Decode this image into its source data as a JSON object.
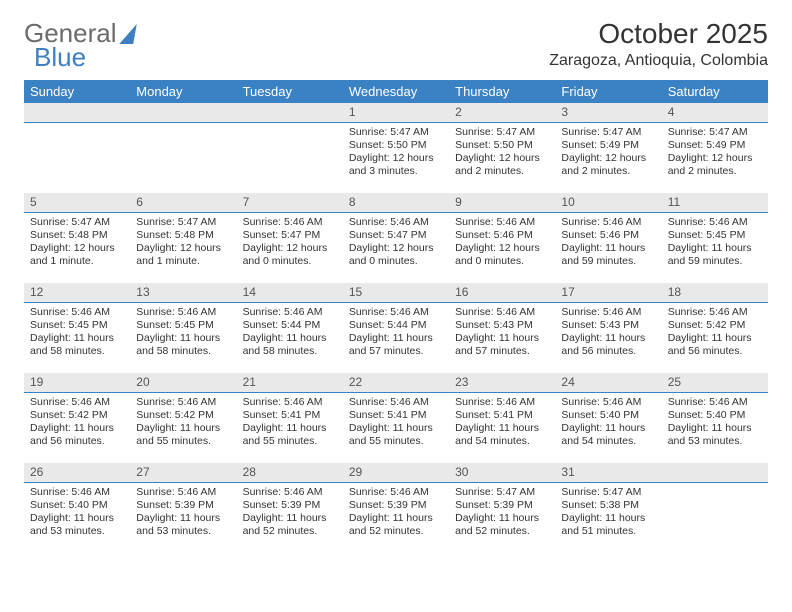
{
  "brand": {
    "part1": "General",
    "part2": "Blue"
  },
  "title": "October 2025",
  "location": "Zaragoza, Antioquia, Colombia",
  "colors": {
    "header_bg": "#3b82c4",
    "header_text": "#ffffff",
    "daynum_bg": "#e9e9e9",
    "daynum_border": "#3b82c4",
    "text": "#333333",
    "logo_gray": "#6b6b6b",
    "logo_blue": "#3f7fbf",
    "page_bg": "#ffffff"
  },
  "weekdays": [
    "Sunday",
    "Monday",
    "Tuesday",
    "Wednesday",
    "Thursday",
    "Friday",
    "Saturday"
  ],
  "weeks": [
    [
      null,
      null,
      null,
      {
        "n": "1",
        "sr": "Sunrise: 5:47 AM",
        "ss": "Sunset: 5:50 PM",
        "dl": "Daylight: 12 hours and 3 minutes."
      },
      {
        "n": "2",
        "sr": "Sunrise: 5:47 AM",
        "ss": "Sunset: 5:50 PM",
        "dl": "Daylight: 12 hours and 2 minutes."
      },
      {
        "n": "3",
        "sr": "Sunrise: 5:47 AM",
        "ss": "Sunset: 5:49 PM",
        "dl": "Daylight: 12 hours and 2 minutes."
      },
      {
        "n": "4",
        "sr": "Sunrise: 5:47 AM",
        "ss": "Sunset: 5:49 PM",
        "dl": "Daylight: 12 hours and 2 minutes."
      }
    ],
    [
      {
        "n": "5",
        "sr": "Sunrise: 5:47 AM",
        "ss": "Sunset: 5:48 PM",
        "dl": "Daylight: 12 hours and 1 minute."
      },
      {
        "n": "6",
        "sr": "Sunrise: 5:47 AM",
        "ss": "Sunset: 5:48 PM",
        "dl": "Daylight: 12 hours and 1 minute."
      },
      {
        "n": "7",
        "sr": "Sunrise: 5:46 AM",
        "ss": "Sunset: 5:47 PM",
        "dl": "Daylight: 12 hours and 0 minutes."
      },
      {
        "n": "8",
        "sr": "Sunrise: 5:46 AM",
        "ss": "Sunset: 5:47 PM",
        "dl": "Daylight: 12 hours and 0 minutes."
      },
      {
        "n": "9",
        "sr": "Sunrise: 5:46 AM",
        "ss": "Sunset: 5:46 PM",
        "dl": "Daylight: 12 hours and 0 minutes."
      },
      {
        "n": "10",
        "sr": "Sunrise: 5:46 AM",
        "ss": "Sunset: 5:46 PM",
        "dl": "Daylight: 11 hours and 59 minutes."
      },
      {
        "n": "11",
        "sr": "Sunrise: 5:46 AM",
        "ss": "Sunset: 5:45 PM",
        "dl": "Daylight: 11 hours and 59 minutes."
      }
    ],
    [
      {
        "n": "12",
        "sr": "Sunrise: 5:46 AM",
        "ss": "Sunset: 5:45 PM",
        "dl": "Daylight: 11 hours and 58 minutes."
      },
      {
        "n": "13",
        "sr": "Sunrise: 5:46 AM",
        "ss": "Sunset: 5:45 PM",
        "dl": "Daylight: 11 hours and 58 minutes."
      },
      {
        "n": "14",
        "sr": "Sunrise: 5:46 AM",
        "ss": "Sunset: 5:44 PM",
        "dl": "Daylight: 11 hours and 58 minutes."
      },
      {
        "n": "15",
        "sr": "Sunrise: 5:46 AM",
        "ss": "Sunset: 5:44 PM",
        "dl": "Daylight: 11 hours and 57 minutes."
      },
      {
        "n": "16",
        "sr": "Sunrise: 5:46 AM",
        "ss": "Sunset: 5:43 PM",
        "dl": "Daylight: 11 hours and 57 minutes."
      },
      {
        "n": "17",
        "sr": "Sunrise: 5:46 AM",
        "ss": "Sunset: 5:43 PM",
        "dl": "Daylight: 11 hours and 56 minutes."
      },
      {
        "n": "18",
        "sr": "Sunrise: 5:46 AM",
        "ss": "Sunset: 5:42 PM",
        "dl": "Daylight: 11 hours and 56 minutes."
      }
    ],
    [
      {
        "n": "19",
        "sr": "Sunrise: 5:46 AM",
        "ss": "Sunset: 5:42 PM",
        "dl": "Daylight: 11 hours and 56 minutes."
      },
      {
        "n": "20",
        "sr": "Sunrise: 5:46 AM",
        "ss": "Sunset: 5:42 PM",
        "dl": "Daylight: 11 hours and 55 minutes."
      },
      {
        "n": "21",
        "sr": "Sunrise: 5:46 AM",
        "ss": "Sunset: 5:41 PM",
        "dl": "Daylight: 11 hours and 55 minutes."
      },
      {
        "n": "22",
        "sr": "Sunrise: 5:46 AM",
        "ss": "Sunset: 5:41 PM",
        "dl": "Daylight: 11 hours and 55 minutes."
      },
      {
        "n": "23",
        "sr": "Sunrise: 5:46 AM",
        "ss": "Sunset: 5:41 PM",
        "dl": "Daylight: 11 hours and 54 minutes."
      },
      {
        "n": "24",
        "sr": "Sunrise: 5:46 AM",
        "ss": "Sunset: 5:40 PM",
        "dl": "Daylight: 11 hours and 54 minutes."
      },
      {
        "n": "25",
        "sr": "Sunrise: 5:46 AM",
        "ss": "Sunset: 5:40 PM",
        "dl": "Daylight: 11 hours and 53 minutes."
      }
    ],
    [
      {
        "n": "26",
        "sr": "Sunrise: 5:46 AM",
        "ss": "Sunset: 5:40 PM",
        "dl": "Daylight: 11 hours and 53 minutes."
      },
      {
        "n": "27",
        "sr": "Sunrise: 5:46 AM",
        "ss": "Sunset: 5:39 PM",
        "dl": "Daylight: 11 hours and 53 minutes."
      },
      {
        "n": "28",
        "sr": "Sunrise: 5:46 AM",
        "ss": "Sunset: 5:39 PM",
        "dl": "Daylight: 11 hours and 52 minutes."
      },
      {
        "n": "29",
        "sr": "Sunrise: 5:46 AM",
        "ss": "Sunset: 5:39 PM",
        "dl": "Daylight: 11 hours and 52 minutes."
      },
      {
        "n": "30",
        "sr": "Sunrise: 5:47 AM",
        "ss": "Sunset: 5:39 PM",
        "dl": "Daylight: 11 hours and 52 minutes."
      },
      {
        "n": "31",
        "sr": "Sunrise: 5:47 AM",
        "ss": "Sunset: 5:38 PM",
        "dl": "Daylight: 11 hours and 51 minutes."
      },
      null
    ]
  ]
}
